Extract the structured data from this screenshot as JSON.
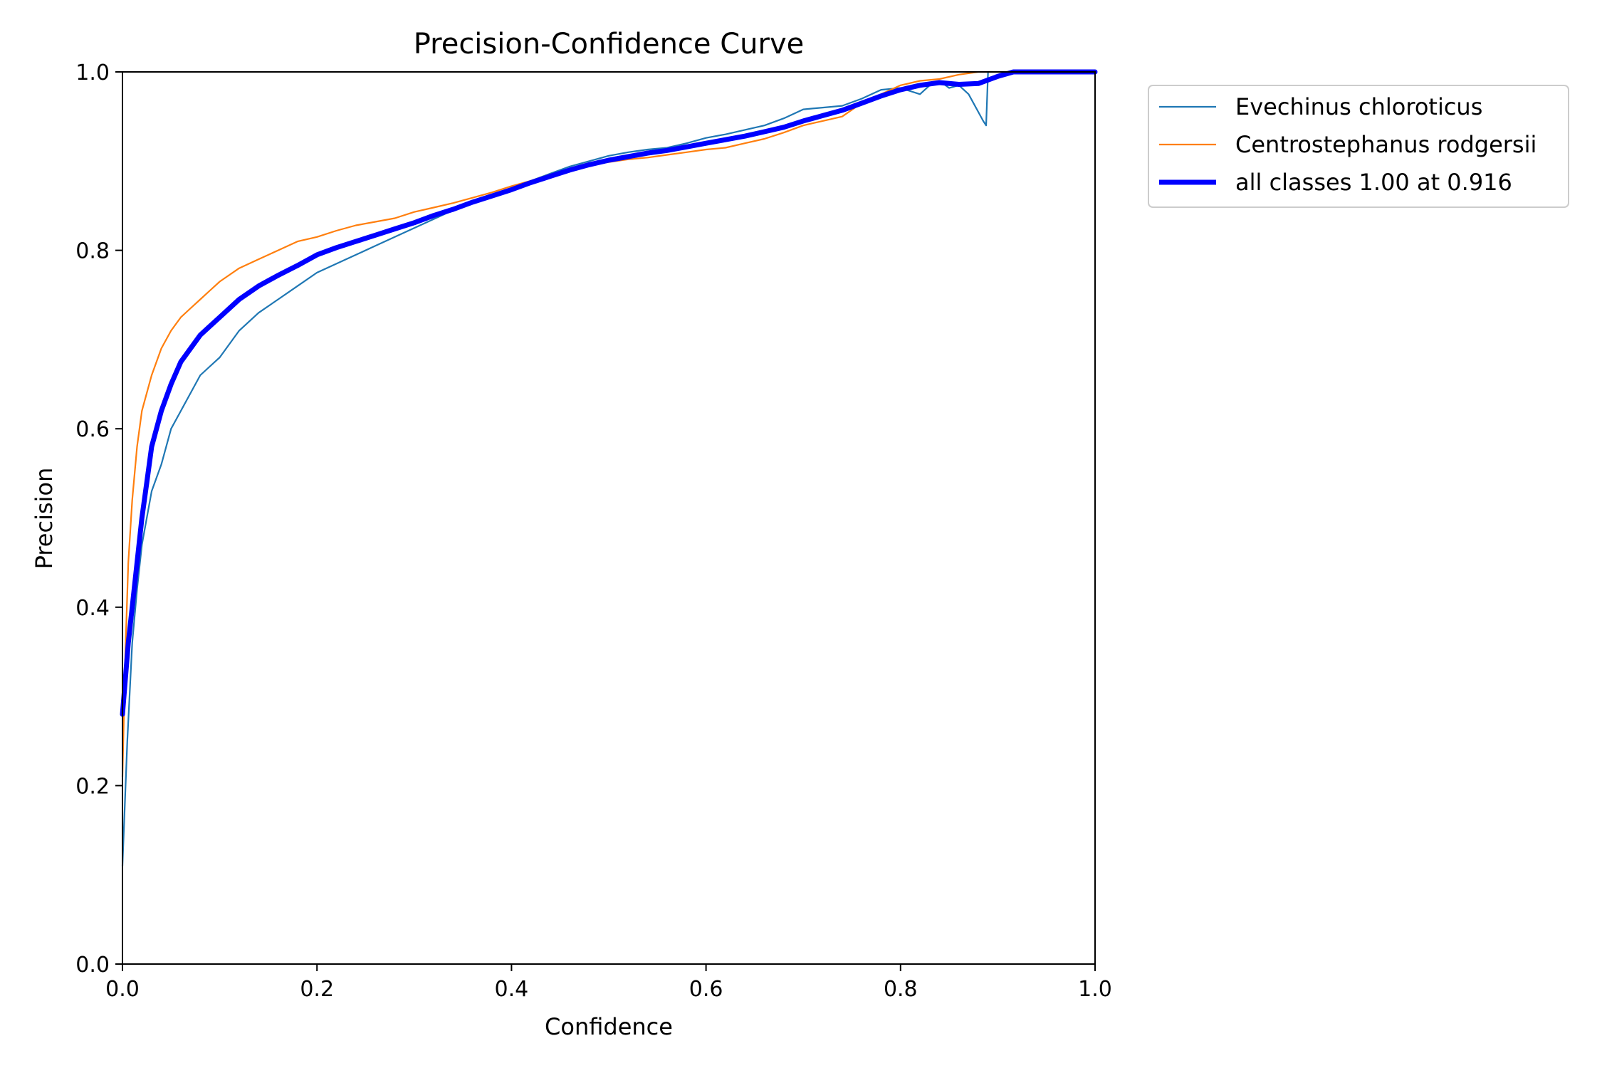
{
  "chart_data": {
    "type": "line",
    "title": "Precision-Confidence Curve",
    "xlabel": "Confidence",
    "ylabel": "Precision",
    "xlim": [
      0,
      1
    ],
    "ylim": [
      0,
      1
    ],
    "xticks": [
      "0.0",
      "0.2",
      "0.4",
      "0.6",
      "0.8",
      "1.0"
    ],
    "yticks": [
      "0.0",
      "0.2",
      "0.4",
      "0.6",
      "0.8",
      "1.0"
    ],
    "grid": false,
    "legend_position": "outside-top-right",
    "series": [
      {
        "name": "Evechinus chloroticus",
        "color": "#1f77b4",
        "linewidth": "thin",
        "x": [
          0.0,
          0.005,
          0.01,
          0.015,
          0.02,
          0.03,
          0.04,
          0.05,
          0.06,
          0.07,
          0.08,
          0.09,
          0.1,
          0.12,
          0.14,
          0.16,
          0.18,
          0.2,
          0.22,
          0.24,
          0.26,
          0.28,
          0.3,
          0.32,
          0.34,
          0.36,
          0.38,
          0.4,
          0.42,
          0.44,
          0.46,
          0.48,
          0.5,
          0.52,
          0.54,
          0.56,
          0.58,
          0.6,
          0.62,
          0.64,
          0.66,
          0.68,
          0.7,
          0.72,
          0.74,
          0.76,
          0.78,
          0.8,
          0.82,
          0.83,
          0.84,
          0.85,
          0.86,
          0.87,
          0.88,
          0.885,
          0.888,
          0.89,
          0.9,
          0.91,
          0.92,
          0.95,
          1.0
        ],
        "y": [
          0.11,
          0.25,
          0.36,
          0.42,
          0.47,
          0.53,
          0.56,
          0.6,
          0.62,
          0.64,
          0.66,
          0.67,
          0.68,
          0.71,
          0.73,
          0.745,
          0.76,
          0.775,
          0.785,
          0.795,
          0.805,
          0.815,
          0.825,
          0.835,
          0.845,
          0.855,
          0.862,
          0.87,
          0.878,
          0.886,
          0.894,
          0.9,
          0.906,
          0.91,
          0.913,
          0.915,
          0.92,
          0.926,
          0.93,
          0.935,
          0.94,
          0.948,
          0.958,
          0.96,
          0.962,
          0.97,
          0.98,
          0.982,
          0.975,
          0.985,
          0.99,
          0.982,
          0.985,
          0.975,
          0.955,
          0.945,
          0.94,
          1.0,
          1.0,
          1.0,
          1.0,
          1.0,
          1.0
        ]
      },
      {
        "name": "Centrostephanus rodgersii",
        "color": "#ff7f0e",
        "linewidth": "thin",
        "x": [
          0.0,
          0.003,
          0.006,
          0.01,
          0.015,
          0.02,
          0.03,
          0.04,
          0.05,
          0.06,
          0.07,
          0.08,
          0.09,
          0.1,
          0.12,
          0.14,
          0.16,
          0.18,
          0.2,
          0.22,
          0.24,
          0.26,
          0.28,
          0.3,
          0.32,
          0.34,
          0.36,
          0.38,
          0.4,
          0.42,
          0.44,
          0.46,
          0.48,
          0.5,
          0.52,
          0.54,
          0.56,
          0.58,
          0.6,
          0.62,
          0.64,
          0.66,
          0.68,
          0.7,
          0.72,
          0.74,
          0.76,
          0.78,
          0.8,
          0.82,
          0.84,
          0.86,
          0.88,
          0.9,
          0.92,
          0.95,
          1.0
        ],
        "y": [
          0.21,
          0.35,
          0.45,
          0.52,
          0.58,
          0.62,
          0.66,
          0.69,
          0.71,
          0.725,
          0.735,
          0.745,
          0.755,
          0.765,
          0.78,
          0.79,
          0.8,
          0.81,
          0.815,
          0.822,
          0.828,
          0.832,
          0.836,
          0.843,
          0.848,
          0.853,
          0.859,
          0.865,
          0.872,
          0.878,
          0.885,
          0.89,
          0.895,
          0.899,
          0.902,
          0.904,
          0.907,
          0.91,
          0.913,
          0.915,
          0.92,
          0.925,
          0.932,
          0.94,
          0.945,
          0.95,
          0.965,
          0.975,
          0.985,
          0.99,
          0.992,
          0.997,
          1.0,
          1.0,
          1.0,
          1.0,
          1.0
        ]
      },
      {
        "name": "all classes 1.00 at 0.916",
        "color": "#0000ff",
        "linewidth": "thick",
        "x": [
          0.0,
          0.003,
          0.006,
          0.01,
          0.015,
          0.02,
          0.025,
          0.03,
          0.04,
          0.05,
          0.06,
          0.07,
          0.08,
          0.09,
          0.1,
          0.12,
          0.14,
          0.16,
          0.18,
          0.2,
          0.22,
          0.24,
          0.26,
          0.28,
          0.3,
          0.32,
          0.34,
          0.36,
          0.38,
          0.4,
          0.42,
          0.44,
          0.46,
          0.48,
          0.5,
          0.52,
          0.54,
          0.56,
          0.58,
          0.6,
          0.62,
          0.64,
          0.66,
          0.68,
          0.7,
          0.72,
          0.74,
          0.76,
          0.78,
          0.8,
          0.82,
          0.84,
          0.86,
          0.88,
          0.9,
          0.916,
          0.95,
          1.0
        ],
        "y": [
          0.28,
          0.32,
          0.36,
          0.4,
          0.45,
          0.5,
          0.54,
          0.58,
          0.62,
          0.65,
          0.675,
          0.69,
          0.705,
          0.715,
          0.725,
          0.745,
          0.76,
          0.772,
          0.783,
          0.795,
          0.803,
          0.81,
          0.817,
          0.824,
          0.831,
          0.839,
          0.846,
          0.854,
          0.861,
          0.868,
          0.876,
          0.883,
          0.89,
          0.896,
          0.901,
          0.905,
          0.909,
          0.912,
          0.916,
          0.92,
          0.924,
          0.928,
          0.933,
          0.938,
          0.945,
          0.951,
          0.957,
          0.965,
          0.973,
          0.98,
          0.985,
          0.988,
          0.986,
          0.987,
          0.995,
          1.0,
          1.0,
          1.0
        ]
      }
    ]
  }
}
